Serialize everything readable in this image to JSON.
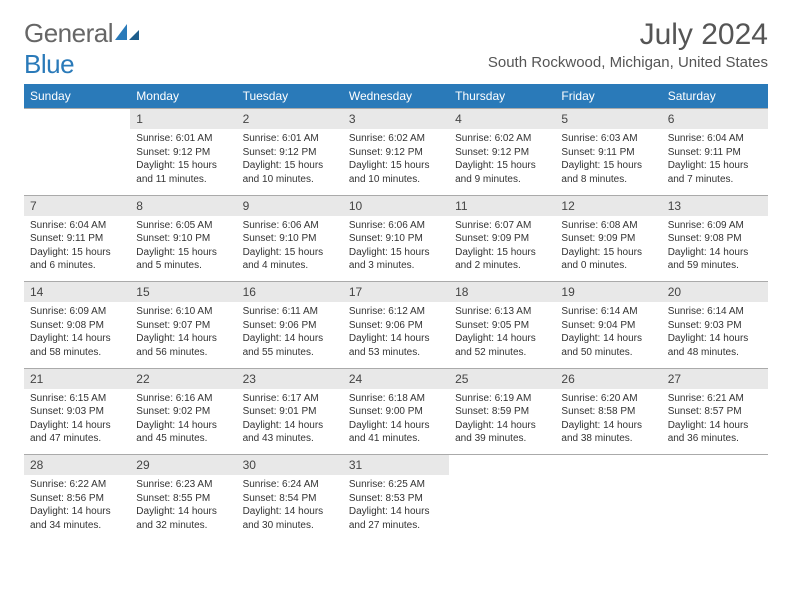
{
  "brand": {
    "name1": "General",
    "name2": "Blue"
  },
  "title": "July 2024",
  "location": "South Rockwood, Michigan, United States",
  "colors": {
    "header_bg": "#2a7ab9",
    "header_fg": "#ffffff",
    "daynum_bg": "#e8e8e8",
    "text": "#333333"
  },
  "weekday_labels": [
    "Sunday",
    "Monday",
    "Tuesday",
    "Wednesday",
    "Thursday",
    "Friday",
    "Saturday"
  ],
  "weeks": [
    [
      null,
      {
        "n": "1",
        "sr": "Sunrise: 6:01 AM",
        "ss": "Sunset: 9:12 PM",
        "dl": "Daylight: 15 hours and 11 minutes."
      },
      {
        "n": "2",
        "sr": "Sunrise: 6:01 AM",
        "ss": "Sunset: 9:12 PM",
        "dl": "Daylight: 15 hours and 10 minutes."
      },
      {
        "n": "3",
        "sr": "Sunrise: 6:02 AM",
        "ss": "Sunset: 9:12 PM",
        "dl": "Daylight: 15 hours and 10 minutes."
      },
      {
        "n": "4",
        "sr": "Sunrise: 6:02 AM",
        "ss": "Sunset: 9:12 PM",
        "dl": "Daylight: 15 hours and 9 minutes."
      },
      {
        "n": "5",
        "sr": "Sunrise: 6:03 AM",
        "ss": "Sunset: 9:11 PM",
        "dl": "Daylight: 15 hours and 8 minutes."
      },
      {
        "n": "6",
        "sr": "Sunrise: 6:04 AM",
        "ss": "Sunset: 9:11 PM",
        "dl": "Daylight: 15 hours and 7 minutes."
      }
    ],
    [
      {
        "n": "7",
        "sr": "Sunrise: 6:04 AM",
        "ss": "Sunset: 9:11 PM",
        "dl": "Daylight: 15 hours and 6 minutes."
      },
      {
        "n": "8",
        "sr": "Sunrise: 6:05 AM",
        "ss": "Sunset: 9:10 PM",
        "dl": "Daylight: 15 hours and 5 minutes."
      },
      {
        "n": "9",
        "sr": "Sunrise: 6:06 AM",
        "ss": "Sunset: 9:10 PM",
        "dl": "Daylight: 15 hours and 4 minutes."
      },
      {
        "n": "10",
        "sr": "Sunrise: 6:06 AM",
        "ss": "Sunset: 9:10 PM",
        "dl": "Daylight: 15 hours and 3 minutes."
      },
      {
        "n": "11",
        "sr": "Sunrise: 6:07 AM",
        "ss": "Sunset: 9:09 PM",
        "dl": "Daylight: 15 hours and 2 minutes."
      },
      {
        "n": "12",
        "sr": "Sunrise: 6:08 AM",
        "ss": "Sunset: 9:09 PM",
        "dl": "Daylight: 15 hours and 0 minutes."
      },
      {
        "n": "13",
        "sr": "Sunrise: 6:09 AM",
        "ss": "Sunset: 9:08 PM",
        "dl": "Daylight: 14 hours and 59 minutes."
      }
    ],
    [
      {
        "n": "14",
        "sr": "Sunrise: 6:09 AM",
        "ss": "Sunset: 9:08 PM",
        "dl": "Daylight: 14 hours and 58 minutes."
      },
      {
        "n": "15",
        "sr": "Sunrise: 6:10 AM",
        "ss": "Sunset: 9:07 PM",
        "dl": "Daylight: 14 hours and 56 minutes."
      },
      {
        "n": "16",
        "sr": "Sunrise: 6:11 AM",
        "ss": "Sunset: 9:06 PM",
        "dl": "Daylight: 14 hours and 55 minutes."
      },
      {
        "n": "17",
        "sr": "Sunrise: 6:12 AM",
        "ss": "Sunset: 9:06 PM",
        "dl": "Daylight: 14 hours and 53 minutes."
      },
      {
        "n": "18",
        "sr": "Sunrise: 6:13 AM",
        "ss": "Sunset: 9:05 PM",
        "dl": "Daylight: 14 hours and 52 minutes."
      },
      {
        "n": "19",
        "sr": "Sunrise: 6:14 AM",
        "ss": "Sunset: 9:04 PM",
        "dl": "Daylight: 14 hours and 50 minutes."
      },
      {
        "n": "20",
        "sr": "Sunrise: 6:14 AM",
        "ss": "Sunset: 9:03 PM",
        "dl": "Daylight: 14 hours and 48 minutes."
      }
    ],
    [
      {
        "n": "21",
        "sr": "Sunrise: 6:15 AM",
        "ss": "Sunset: 9:03 PM",
        "dl": "Daylight: 14 hours and 47 minutes."
      },
      {
        "n": "22",
        "sr": "Sunrise: 6:16 AM",
        "ss": "Sunset: 9:02 PM",
        "dl": "Daylight: 14 hours and 45 minutes."
      },
      {
        "n": "23",
        "sr": "Sunrise: 6:17 AM",
        "ss": "Sunset: 9:01 PM",
        "dl": "Daylight: 14 hours and 43 minutes."
      },
      {
        "n": "24",
        "sr": "Sunrise: 6:18 AM",
        "ss": "Sunset: 9:00 PM",
        "dl": "Daylight: 14 hours and 41 minutes."
      },
      {
        "n": "25",
        "sr": "Sunrise: 6:19 AM",
        "ss": "Sunset: 8:59 PM",
        "dl": "Daylight: 14 hours and 39 minutes."
      },
      {
        "n": "26",
        "sr": "Sunrise: 6:20 AM",
        "ss": "Sunset: 8:58 PM",
        "dl": "Daylight: 14 hours and 38 minutes."
      },
      {
        "n": "27",
        "sr": "Sunrise: 6:21 AM",
        "ss": "Sunset: 8:57 PM",
        "dl": "Daylight: 14 hours and 36 minutes."
      }
    ],
    [
      {
        "n": "28",
        "sr": "Sunrise: 6:22 AM",
        "ss": "Sunset: 8:56 PM",
        "dl": "Daylight: 14 hours and 34 minutes."
      },
      {
        "n": "29",
        "sr": "Sunrise: 6:23 AM",
        "ss": "Sunset: 8:55 PM",
        "dl": "Daylight: 14 hours and 32 minutes."
      },
      {
        "n": "30",
        "sr": "Sunrise: 6:24 AM",
        "ss": "Sunset: 8:54 PM",
        "dl": "Daylight: 14 hours and 30 minutes."
      },
      {
        "n": "31",
        "sr": "Sunrise: 6:25 AM",
        "ss": "Sunset: 8:53 PM",
        "dl": "Daylight: 14 hours and 27 minutes."
      },
      null,
      null,
      null
    ]
  ]
}
